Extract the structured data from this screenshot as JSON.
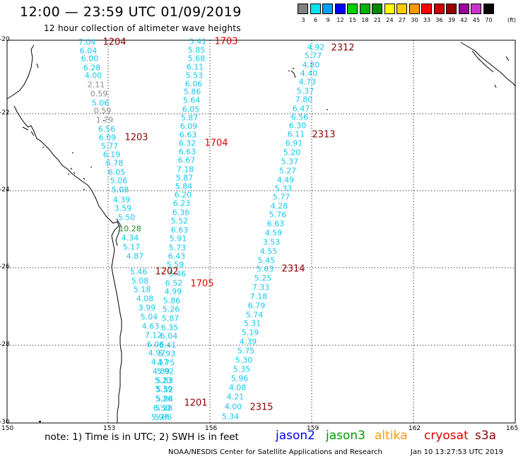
{
  "title": "12:00 — 23:59 UTC 01/09/2019",
  "subtitle": "12 hour collection of altimeter wave heights",
  "legend": {
    "unit": "(ft)",
    "levels": [
      {
        "label": "3",
        "color": "#808080"
      },
      {
        "label": "6",
        "color": "#00e5ee"
      },
      {
        "label": "9",
        "color": "#00a0ff"
      },
      {
        "label": "12",
        "color": "#0000ff"
      },
      {
        "label": "15",
        "color": "#00d000"
      },
      {
        "label": "18",
        "color": "#00b000"
      },
      {
        "label": "21",
        "color": "#008800"
      },
      {
        "label": "24",
        "color": "#ffff00"
      },
      {
        "label": "27",
        "color": "#ffcc00"
      },
      {
        "label": "30",
        "color": "#ff9900"
      },
      {
        "label": "33",
        "color": "#ff0000"
      },
      {
        "label": "36",
        "color": "#cc0000"
      },
      {
        "label": "39",
        "color": "#990000"
      },
      {
        "label": "42",
        "color": "#990099"
      },
      {
        "label": "45",
        "color": "#cc33cc"
      },
      {
        "label": "70",
        "color": "#000000"
      }
    ]
  },
  "axes": {
    "lat_labels": [
      "-20",
      "-22",
      "-24",
      "-26",
      "-28",
      "-30"
    ],
    "lon_labels": [
      "150",
      "153",
      "156",
      "159",
      "162",
      "165"
    ]
  },
  "passes": [
    {
      "id": "1204",
      "color": "#8b0000"
    },
    {
      "id": "1203",
      "color": "#8b0000"
    },
    {
      "id": "1202",
      "color": "#8b0000"
    },
    {
      "id": "1201",
      "color": "#8b0000"
    },
    {
      "id": "1703",
      "color": "#e00000"
    },
    {
      "id": "1704",
      "color": "#e00000"
    },
    {
      "id": "1705",
      "color": "#e00000"
    },
    {
      "id": "2312",
      "color": "#8b0000"
    },
    {
      "id": "2313",
      "color": "#8b0000"
    },
    {
      "id": "2314",
      "color": "#8b0000"
    },
    {
      "id": "2315",
      "color": "#8b0000"
    }
  ],
  "track_values": {
    "track_120x": [
      "7.04",
      "6.04",
      "6.00",
      "6.28",
      "4.00",
      "2.11",
      "0.59",
      "5.06",
      "0.59",
      "1.79",
      "6.56",
      "6.09",
      "5.77",
      "6.19",
      "6.78",
      "6.05",
      "5.06",
      "5.08",
      "4.39",
      "3.59",
      "5.50",
      "10.28",
      "4.34",
      "5.17",
      "4.87",
      "5.46",
      "5.08",
      "5.18",
      "4.08",
      "3.99",
      "5.04",
      "4.63",
      "7.12",
      "6.06",
      "4.97",
      "4.57",
      "4.89",
      "5.23",
      "5.39",
      "5.84",
      "6.50",
      "5.97"
    ],
    "track_170x": [
      "5.41",
      "5.85",
      "5.68",
      "6.11",
      "5.53",
      "6.06",
      "5.86",
      "5.64",
      "6.05",
      "5.87",
      "6.09",
      "6.63",
      "6.32",
      "6.63",
      "6.67",
      "7.18",
      "5.87",
      "5.84",
      "6.20",
      "6.23",
      "6.36",
      "5.52",
      "6.63",
      "5.91",
      "5.73",
      "6.43",
      "5.59",
      "5.46",
      "6.52",
      "4.99",
      "5.86",
      "5.26",
      "5.87",
      "6.35",
      "6.04",
      "6.41",
      "5.93",
      "4.75",
      "5.92",
      "5.83",
      "5.52",
      "5.26",
      "5.18",
      "5.86"
    ],
    "track_231x": [
      "4.92",
      "5.77",
      "4.80",
      "4.40",
      "4.73",
      "5.37",
      "7.80",
      "6.47",
      "6.56",
      "6.30",
      "6.11",
      "6.91",
      "5.20",
      "5.37",
      "5.27",
      "4.49",
      "5.33",
      "5.77",
      "4.28",
      "5.76",
      "6.63",
      "4.59",
      "3.53",
      "4.55",
      "5.45",
      "5.63",
      "5.25",
      "7.33",
      "7.18",
      "6.79",
      "5.74",
      "5.31",
      "5.19",
      "4.39",
      "5.75",
      "5.30",
      "5.35",
      "5.96",
      "4.08",
      "4.21",
      "4.00",
      "5.34"
    ]
  },
  "footer": {
    "note": "note: 1) Time is in UTC; 2) SWH is in feet",
    "satellites": [
      {
        "name": "jason2",
        "color": "#0000ff"
      },
      {
        "name": "jason3",
        "color": "#009900"
      },
      {
        "name": "altika",
        "color": "#ff9900"
      },
      {
        "name": "cryosat",
        "color": "#e00000"
      },
      {
        "name": "s3a",
        "color": "#8b0000"
      }
    ],
    "credit": "NOAA/NESDIS Center for Satellite Applications and Research",
    "timestamp": "Jan 10 13:27:53 UTC 2019"
  }
}
